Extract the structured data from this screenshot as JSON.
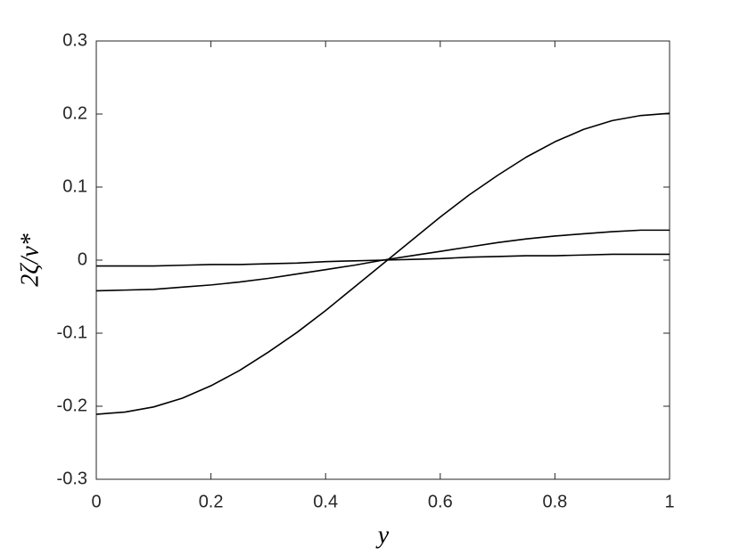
{
  "chart_data": {
    "type": "line",
    "x_label": "y",
    "y_label": "2ζ/v*",
    "x": [
      0,
      0.05,
      0.1,
      0.15,
      0.2,
      0.25,
      0.3,
      0.35,
      0.4,
      0.45,
      0.5,
      0.55,
      0.6,
      0.65,
      0.7,
      0.75,
      0.8,
      0.85,
      0.9,
      0.95,
      1
    ],
    "series": [
      {
        "color": "#000000",
        "values": [
          -0.211,
          -0.208,
          -0.201,
          -0.189,
          -0.172,
          -0.151,
          -0.126,
          -0.099,
          -0.069,
          -0.037,
          -0.005,
          0.027,
          0.059,
          0.089,
          0.116,
          0.141,
          0.162,
          0.179,
          0.191,
          0.198,
          0.201
        ]
      },
      {
        "color": "#000000",
        "values": [
          -0.042,
          -0.041,
          -0.04,
          -0.037,
          -0.034,
          -0.03,
          -0.025,
          -0.019,
          -0.013,
          -0.007,
          0,
          0.006,
          0.012,
          0.018,
          0.024,
          0.029,
          0.033,
          0.036,
          0.039,
          0.041,
          0.041
        ]
      },
      {
        "color": "#000000",
        "values": [
          -0.008,
          -0.008,
          -0.008,
          -0.007,
          -0.006,
          -0.006,
          -0.005,
          -0.004,
          -0.002,
          -0.001,
          0,
          0.001,
          0.002,
          0.004,
          0.005,
          0.006,
          0.006,
          0.007,
          0.008,
          0.008,
          0.008
        ]
      }
    ],
    "xlim": [
      0,
      1
    ],
    "xticks": [
      0,
      0.2,
      0.4,
      0.6,
      0.8,
      1
    ],
    "ylim": [
      -0.3,
      0.3
    ],
    "yticks": [
      -0.3,
      -0.2,
      -0.1,
      0,
      0.1,
      0.2,
      0.3
    ],
    "grid": false
  }
}
